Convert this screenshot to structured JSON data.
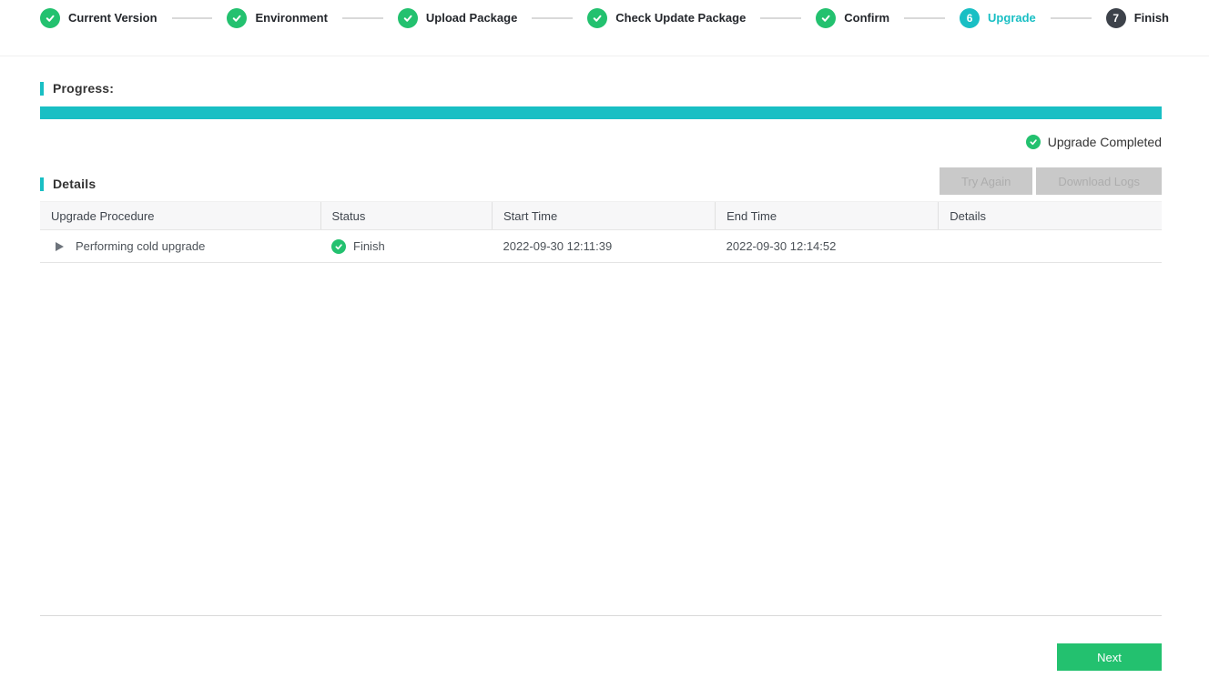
{
  "colors": {
    "teal": "#19bfc4",
    "green": "#23c16f",
    "pending_dark": "#3d424a"
  },
  "stepper": {
    "steps": [
      {
        "label": "Current Version",
        "state": "done"
      },
      {
        "label": "Environment",
        "state": "done"
      },
      {
        "label": "Upload Package",
        "state": "done"
      },
      {
        "label": "Check Update Package",
        "state": "done"
      },
      {
        "label": "Confirm",
        "state": "done"
      },
      {
        "label": "Upgrade",
        "state": "active",
        "number": "6"
      },
      {
        "label": "Finish",
        "state": "pending",
        "number": "7"
      }
    ]
  },
  "progress": {
    "label": "Progress:",
    "percent": 100,
    "status_text": "Upgrade Completed"
  },
  "details": {
    "label": "Details",
    "buttons": {
      "try_again": "Try Again",
      "download_logs": "Download Logs"
    },
    "table": {
      "columns": [
        "Upgrade Procedure",
        "Status",
        "Start Time",
        "End Time",
        "Details"
      ],
      "column_widths": [
        "25%",
        "15.3%",
        "19.9%",
        "19.9%",
        "19.9%"
      ],
      "rows": [
        {
          "procedure": "Performing cold upgrade",
          "status": "Finish",
          "start_time": "2022-09-30 12:11:39",
          "end_time": "2022-09-30 12:14:52",
          "details": ""
        }
      ]
    }
  },
  "footer": {
    "next_label": "Next"
  }
}
